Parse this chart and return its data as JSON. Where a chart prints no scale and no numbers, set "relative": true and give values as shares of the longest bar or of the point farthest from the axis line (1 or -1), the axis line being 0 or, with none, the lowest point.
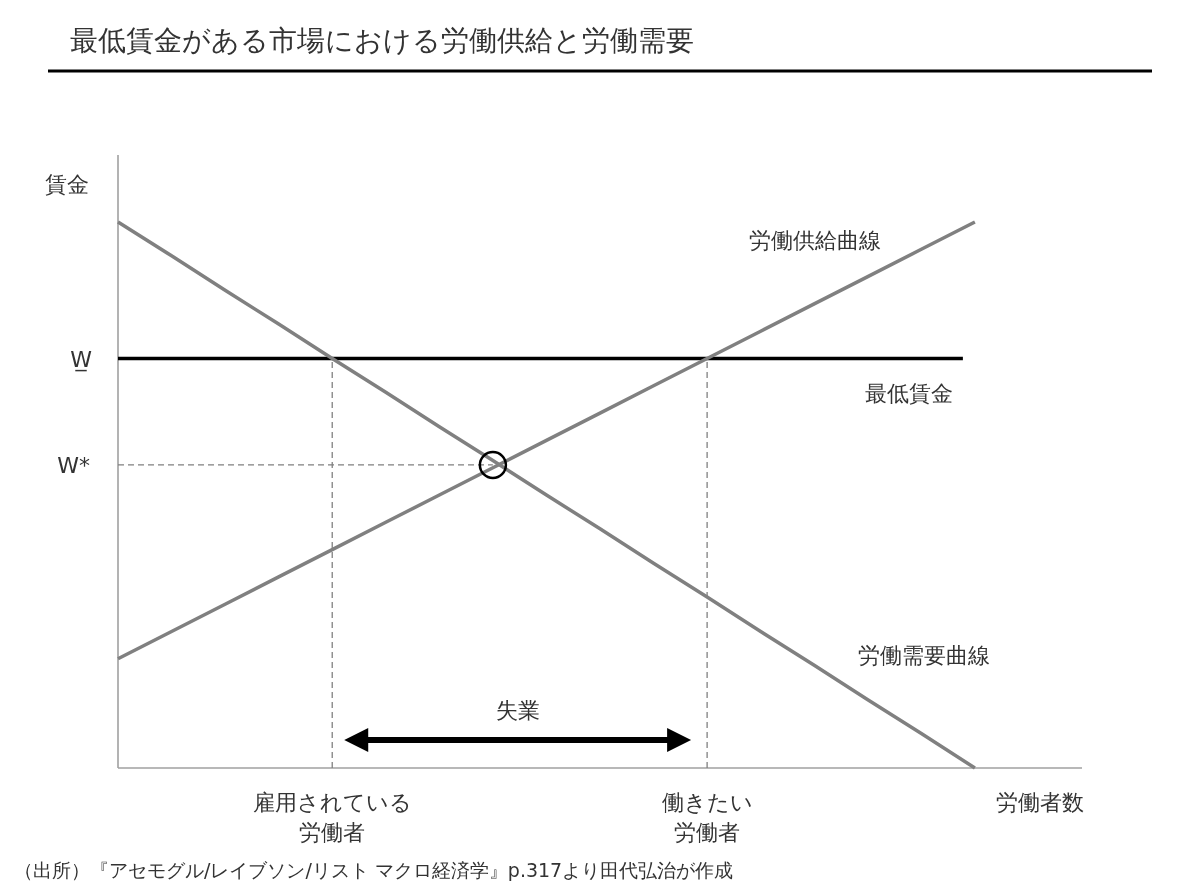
{
  "chart_data": {
    "type": "line",
    "title": "最低賃金がある市場における労働供給と労働需要",
    "xlabel": "労働者数",
    "ylabel": "賃金",
    "relative": true,
    "categories": [
      null,
      null,
      null,
      null,
      "雇用されている労働者",
      null,
      null,
      null,
      null,
      null,
      null,
      "働きたい労働者",
      null,
      null,
      null,
      null,
      null,
      null,
      null
    ],
    "series": [
      {
        "name": "労働供給曲線",
        "color": "#808080",
        "values": [
          0.2,
          0.25,
          0.3,
          0.35,
          0.4,
          0.45,
          0.5,
          0.55,
          0.6,
          0.65,
          0.7,
          0.75,
          0.8,
          0.85,
          0.9,
          0.95,
          1,
          null,
          null
        ]
      },
      {
        "name": "労働需要曲線",
        "color": "#808080",
        "values": [
          1,
          0.938,
          0.875,
          0.813,
          0.75,
          0.688,
          0.625,
          0.563,
          0.5,
          0.438,
          0.375,
          0.313,
          0.25,
          0.188,
          0.125,
          0.063,
          0,
          null,
          null
        ]
      },
      {
        "name": "W*",
        "color": "#808080",
        "line_style": "dashed",
        "values": [
          0.555,
          0.555,
          0.555,
          0.555,
          0.555,
          0.555,
          0.555,
          0.555,
          null,
          null,
          null,
          null,
          null,
          null,
          null,
          null,
          null,
          null,
          null
        ]
      },
      {
        "type": "scatter",
        "color": "#000000",
        "marker": "circle",
        "values": [
          null,
          null,
          null,
          null,
          null,
          null,
          null,
          0.555,
          null,
          null,
          null,
          null,
          null,
          null,
          null,
          null,
          null,
          null,
          null
        ]
      }
    ],
    "ref_lines": [
      {
        "axis": "y",
        "value": 0.75,
        "label": "最低賃金",
        "color": "#000000"
      },
      {
        "axis": "x",
        "value": "雇用されている労働者",
        "color": "#808080",
        "line_style": "dashed"
      },
      {
        "axis": "x",
        "value": "働きたい労働者",
        "color": "#808080",
        "line_style": "dashed"
      }
    ],
    "annotations": [
      "W̲",
      "失業",
      "（出所）『アセモグル/レイブソン/リスト マクロ経済学』p.317より田代弘治が作成"
    ]
  }
}
